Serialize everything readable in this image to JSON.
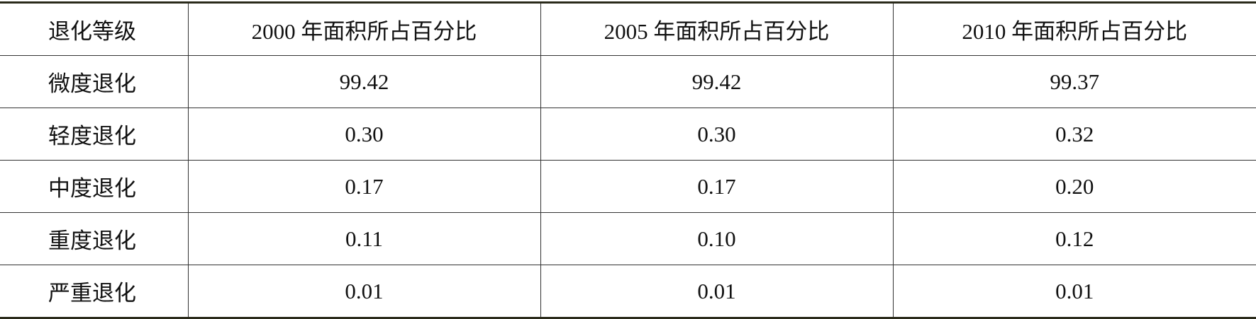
{
  "table": {
    "header": [
      "退化等级",
      "2000 年面积所占百分比",
      "2005 年面积所占百分比",
      "2010 年面积所占百分比"
    ],
    "rows": [
      [
        "微度退化",
        "99.42",
        "99.42",
        "99.37"
      ],
      [
        "轻度退化",
        "0.30",
        "0.30",
        "0.32"
      ],
      [
        "中度退化",
        "0.17",
        "0.17",
        "0.20"
      ],
      [
        "重度退化",
        "0.11",
        "0.10",
        "0.12"
      ],
      [
        "严重退化",
        "0.01",
        "0.01",
        "0.01"
      ]
    ]
  }
}
